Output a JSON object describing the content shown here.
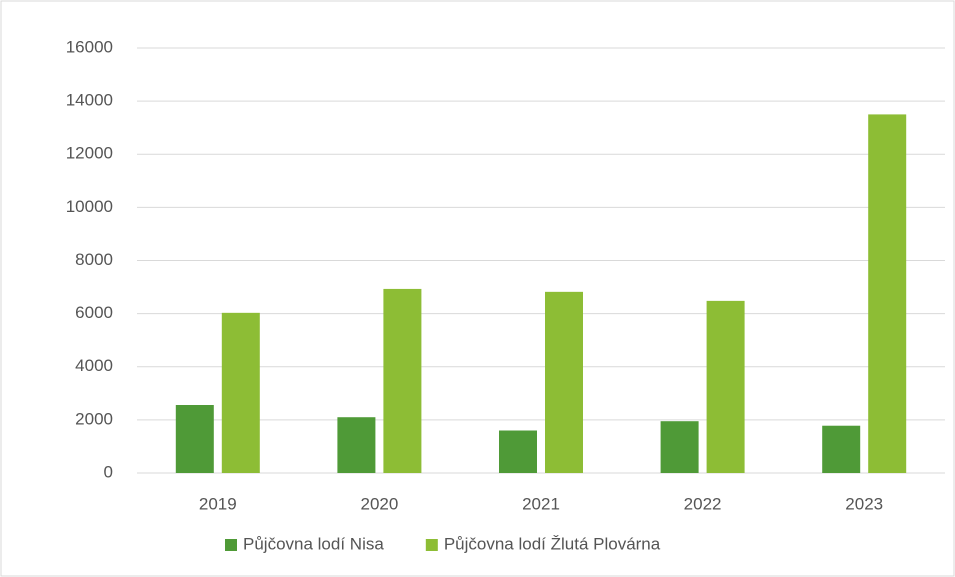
{
  "chart_data": {
    "type": "bar",
    "categories": [
      "2019",
      "2020",
      "2021",
      "2022",
      "2023"
    ],
    "series": [
      {
        "name": "Půjčovna lodí Nisa",
        "color": "#4f9a37",
        "values": [
          2560,
          2100,
          1600,
          1950,
          1780
        ]
      },
      {
        "name": "Půjčovna lodí Žlutá Plovárna",
        "color": "#8dbd35",
        "values": [
          6030,
          6930,
          6820,
          6480,
          13500
        ]
      }
    ],
    "ylim": [
      0,
      16000
    ],
    "yticks": [
      0,
      2000,
      4000,
      6000,
      8000,
      10000,
      12000,
      14000,
      16000
    ],
    "grid": true,
    "legend": "bottom"
  }
}
